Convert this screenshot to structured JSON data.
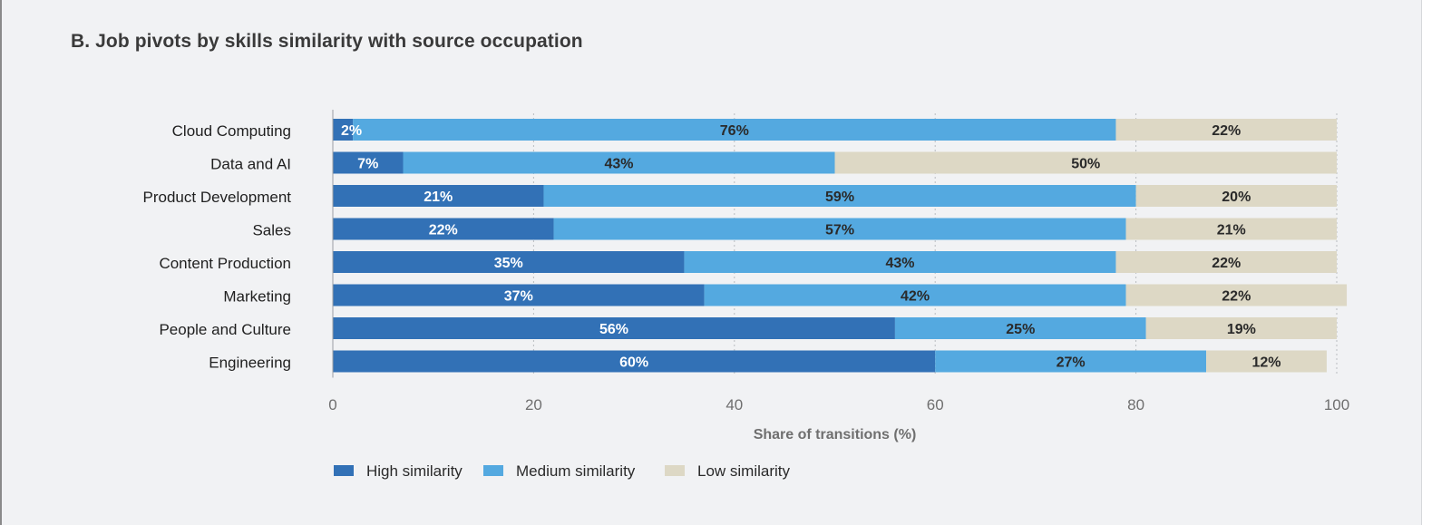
{
  "chart_data": {
    "type": "bar",
    "orientation": "horizontal",
    "stacked": true,
    "title": "B. Job pivots by skills similarity with source occupation",
    "xlabel": "Share of transitions (%)",
    "ylabel": "",
    "xlim": [
      0,
      100
    ],
    "xticks": [
      0,
      20,
      40,
      60,
      80,
      100
    ],
    "grid": "vertical dotted",
    "legend_position": "bottom-left",
    "categories": [
      "Cloud Computing",
      "Data and AI",
      "Product Development",
      "Sales",
      "Content Production",
      "Marketing",
      "People and Culture",
      "Engineering"
    ],
    "series": [
      {
        "name": "High similarity",
        "color": "#3271b6",
        "label_color": "#ffffff",
        "values": [
          2,
          7,
          21,
          22,
          35,
          37,
          56,
          60
        ],
        "labels": [
          "2%",
          "7%",
          "21%",
          "22%",
          "35%",
          "37%",
          "56%",
          "60%"
        ]
      },
      {
        "name": "Medium similarity",
        "color": "#54a9e0",
        "label_color": "#2a2a2a",
        "values": [
          76,
          43,
          59,
          57,
          43,
          42,
          25,
          27
        ],
        "labels": [
          "76%",
          "43%",
          "59%",
          "57%",
          "43%",
          "42%",
          "25%",
          "27%"
        ]
      },
      {
        "name": "Low similarity",
        "color": "#ddd8c5",
        "label_color": "#2a2a2a",
        "values": [
          22,
          50,
          20,
          21,
          22,
          22,
          19,
          12
        ],
        "labels": [
          "22%",
          "50%",
          "20%",
          "21%",
          "22%",
          "22%",
          "19%",
          "12%"
        ]
      }
    ]
  }
}
